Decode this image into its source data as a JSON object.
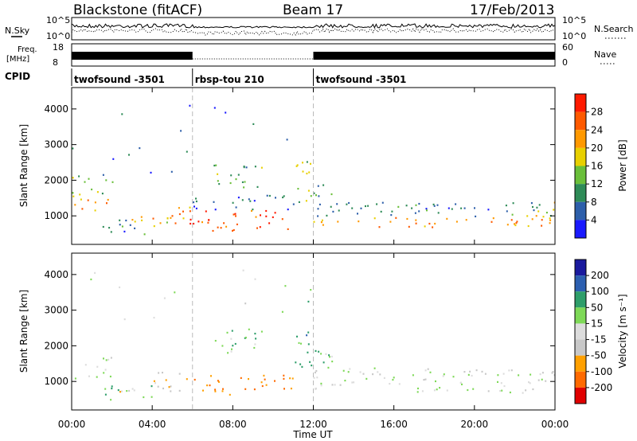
{
  "header": {
    "title": "Blackstone (fitACF)",
    "beam": "Beam 17",
    "date": "17/Feb/2013"
  },
  "top_panels": {
    "nsky_label": "N.Sky",
    "nsky_ticks": [
      "10^5",
      "10^0"
    ],
    "nsearch_label": "N.Search",
    "nsearch_ticks": [
      "10^5",
      "10^0"
    ],
    "freq_label": "Freq.",
    "freq_unit": "[MHz]",
    "freq_ticks": [
      "18",
      "8"
    ],
    "nave_label": "Nave",
    "nave_ticks": [
      "60",
      "0"
    ],
    "cpid_label": "CPID",
    "cpid_segments": [
      {
        "name": "twofsound -3501",
        "start_h": 0,
        "end_h": 6
      },
      {
        "name": "rbsp-tou 210",
        "start_h": 6,
        "end_h": 12
      },
      {
        "name": "twofsound -3501",
        "start_h": 12,
        "end_h": 24
      }
    ]
  },
  "x_axis": {
    "label": "Time UT",
    "ticks": [
      "00:00",
      "04:00",
      "08:00",
      "12:00",
      "16:00",
      "20:00",
      "00:00"
    ],
    "range_h": [
      0,
      24
    ]
  },
  "colors": {
    "power": [
      "#1a1aff",
      "#2d5faa",
      "#2e8b57",
      "#6abf3a",
      "#e8d000",
      "#ff9900",
      "#ff5a00",
      "#ff1a00"
    ],
    "velocity": [
      "#e00000",
      "#ff6a00",
      "#ffa000",
      "#c8c8c8",
      "#dcdcdc",
      "#7ed957",
      "#2e9e6a",
      "#2c5fb0",
      "#1a1a9e"
    ]
  },
  "chart_data": [
    {
      "type": "heatmap",
      "name": "power",
      "ylabel": "Slant Range [km]",
      "yticks": [
        1000,
        2000,
        3000,
        4000
      ],
      "ylim": [
        200,
        4600
      ],
      "xlim": [
        0,
        24
      ],
      "colorbar": {
        "label": "Power [dB]",
        "ticks": [
          "4",
          "8",
          "12",
          "16",
          "20",
          "24",
          "28"
        ],
        "range": [
          0,
          32
        ]
      },
      "regions": [
        {
          "t0": 0.0,
          "t1": 1.8,
          "r0": 1150,
          "r1": 1650,
          "value": 22
        },
        {
          "t0": 0.0,
          "t1": 2.0,
          "r0": 1600,
          "r1": 2200,
          "value": 12
        },
        {
          "t0": 1.5,
          "t1": 4.0,
          "r0": 500,
          "r1": 900,
          "value": 8
        },
        {
          "t0": 2.0,
          "t1": 6.0,
          "r0": 700,
          "r1": 1000,
          "value": 20
        },
        {
          "t0": 4.0,
          "t1": 6.0,
          "r0": 800,
          "r1": 1300,
          "value": 24
        },
        {
          "t0": 6.0,
          "t1": 11.0,
          "r0": 600,
          "r1": 1200,
          "value": 28
        },
        {
          "t0": 6.0,
          "t1": 11.5,
          "r0": 1200,
          "r1": 1600,
          "value": 8
        },
        {
          "t0": 7.0,
          "t1": 9.5,
          "r0": 1800,
          "r1": 2500,
          "value": 12
        },
        {
          "t0": 11.0,
          "t1": 12.0,
          "r0": 1300,
          "r1": 2600,
          "value": 16
        },
        {
          "t0": 12.0,
          "t1": 13.0,
          "r0": 1000,
          "r1": 1900,
          "value": 10
        },
        {
          "t0": 12.0,
          "t1": 24.0,
          "r0": 700,
          "r1": 1000,
          "value": 22
        },
        {
          "t0": 12.0,
          "t1": 24.0,
          "r0": 1000,
          "r1": 1400,
          "value": 8
        },
        {
          "t0": 22.5,
          "t1": 24.0,
          "r0": 1000,
          "r1": 1500,
          "value": 20
        },
        {
          "t0": 0.0,
          "t1": 12.0,
          "r0": 2200,
          "r1": 4300,
          "value": 6
        }
      ]
    },
    {
      "type": "heatmap",
      "name": "velocity",
      "ylabel": "Slant Range [km]",
      "yticks": [
        1000,
        2000,
        3000,
        4000
      ],
      "ylim": [
        200,
        4600
      ],
      "xlim": [
        0,
        24
      ],
      "colorbar": {
        "label": "Velocity [m s⁻¹]",
        "ticks": [
          "200",
          "100",
          "50",
          "15",
          "-15",
          "-50",
          "-100",
          "-200"
        ],
        "range": [
          -250,
          250
        ]
      },
      "regions": [
        {
          "t0": 0.0,
          "t1": 2.0,
          "r0": 1100,
          "r1": 1700,
          "value": 0
        },
        {
          "t0": 1.5,
          "t1": 4.0,
          "r0": 500,
          "r1": 900,
          "value": 60
        },
        {
          "t0": 2.0,
          "t1": 6.0,
          "r0": 700,
          "r1": 1000,
          "value": -20
        },
        {
          "t0": 4.0,
          "t1": 6.0,
          "r0": 1000,
          "r1": 1300,
          "value": -70
        },
        {
          "t0": 6.0,
          "t1": 11.0,
          "r0": 650,
          "r1": 1200,
          "value": -90
        },
        {
          "t0": 7.0,
          "t1": 9.5,
          "r0": 1800,
          "r1": 2500,
          "value": 30
        },
        {
          "t0": 11.0,
          "t1": 12.0,
          "r0": 1300,
          "r1": 2500,
          "value": 70
        },
        {
          "t0": 12.0,
          "t1": 13.0,
          "r0": 900,
          "r1": 1900,
          "value": 40
        },
        {
          "t0": 12.0,
          "t1": 24.0,
          "r0": 700,
          "r1": 1400,
          "value": 0
        },
        {
          "t0": 0.0,
          "t1": 12.0,
          "r0": 2200,
          "r1": 4300,
          "value": 20
        }
      ]
    }
  ]
}
